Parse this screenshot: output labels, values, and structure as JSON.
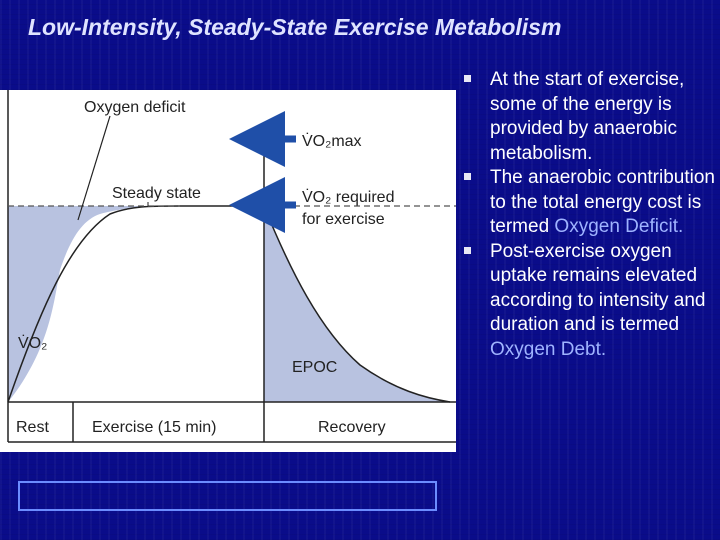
{
  "slide": {
    "title": "Low-Intensity, Steady-State Exercise Metabolism"
  },
  "diagram": {
    "oxygen_deficit_label": "Oxygen deficit",
    "vo2max_label": "V̇O₂max",
    "steady_state_label": "Steady state",
    "vo2_required_line1": "V̇O₂ required",
    "vo2_required_line2": "for exercise",
    "y_axis_label": "V̇O₂",
    "epoc_label": "EPOC",
    "phases": {
      "rest": "Rest",
      "exercise": "Exercise (15 min)",
      "recovery": "Recovery"
    },
    "colors": {
      "fill": "#b8c2e0",
      "arrow": "#1f4fa8",
      "frame": "#222222"
    }
  },
  "bullets": [
    {
      "text": "At the start of exercise, some of the energy is provided by anaerobic metabolism.",
      "highlight": ""
    },
    {
      "text": "The anaerobic contribution to the total energy cost is termed ",
      "highlight": "Oxygen Deficit."
    },
    {
      "text": "Post-exercise oxygen uptake remains elevated according to intensity and duration and is termed ",
      "highlight": "Oxygen Debt."
    }
  ]
}
